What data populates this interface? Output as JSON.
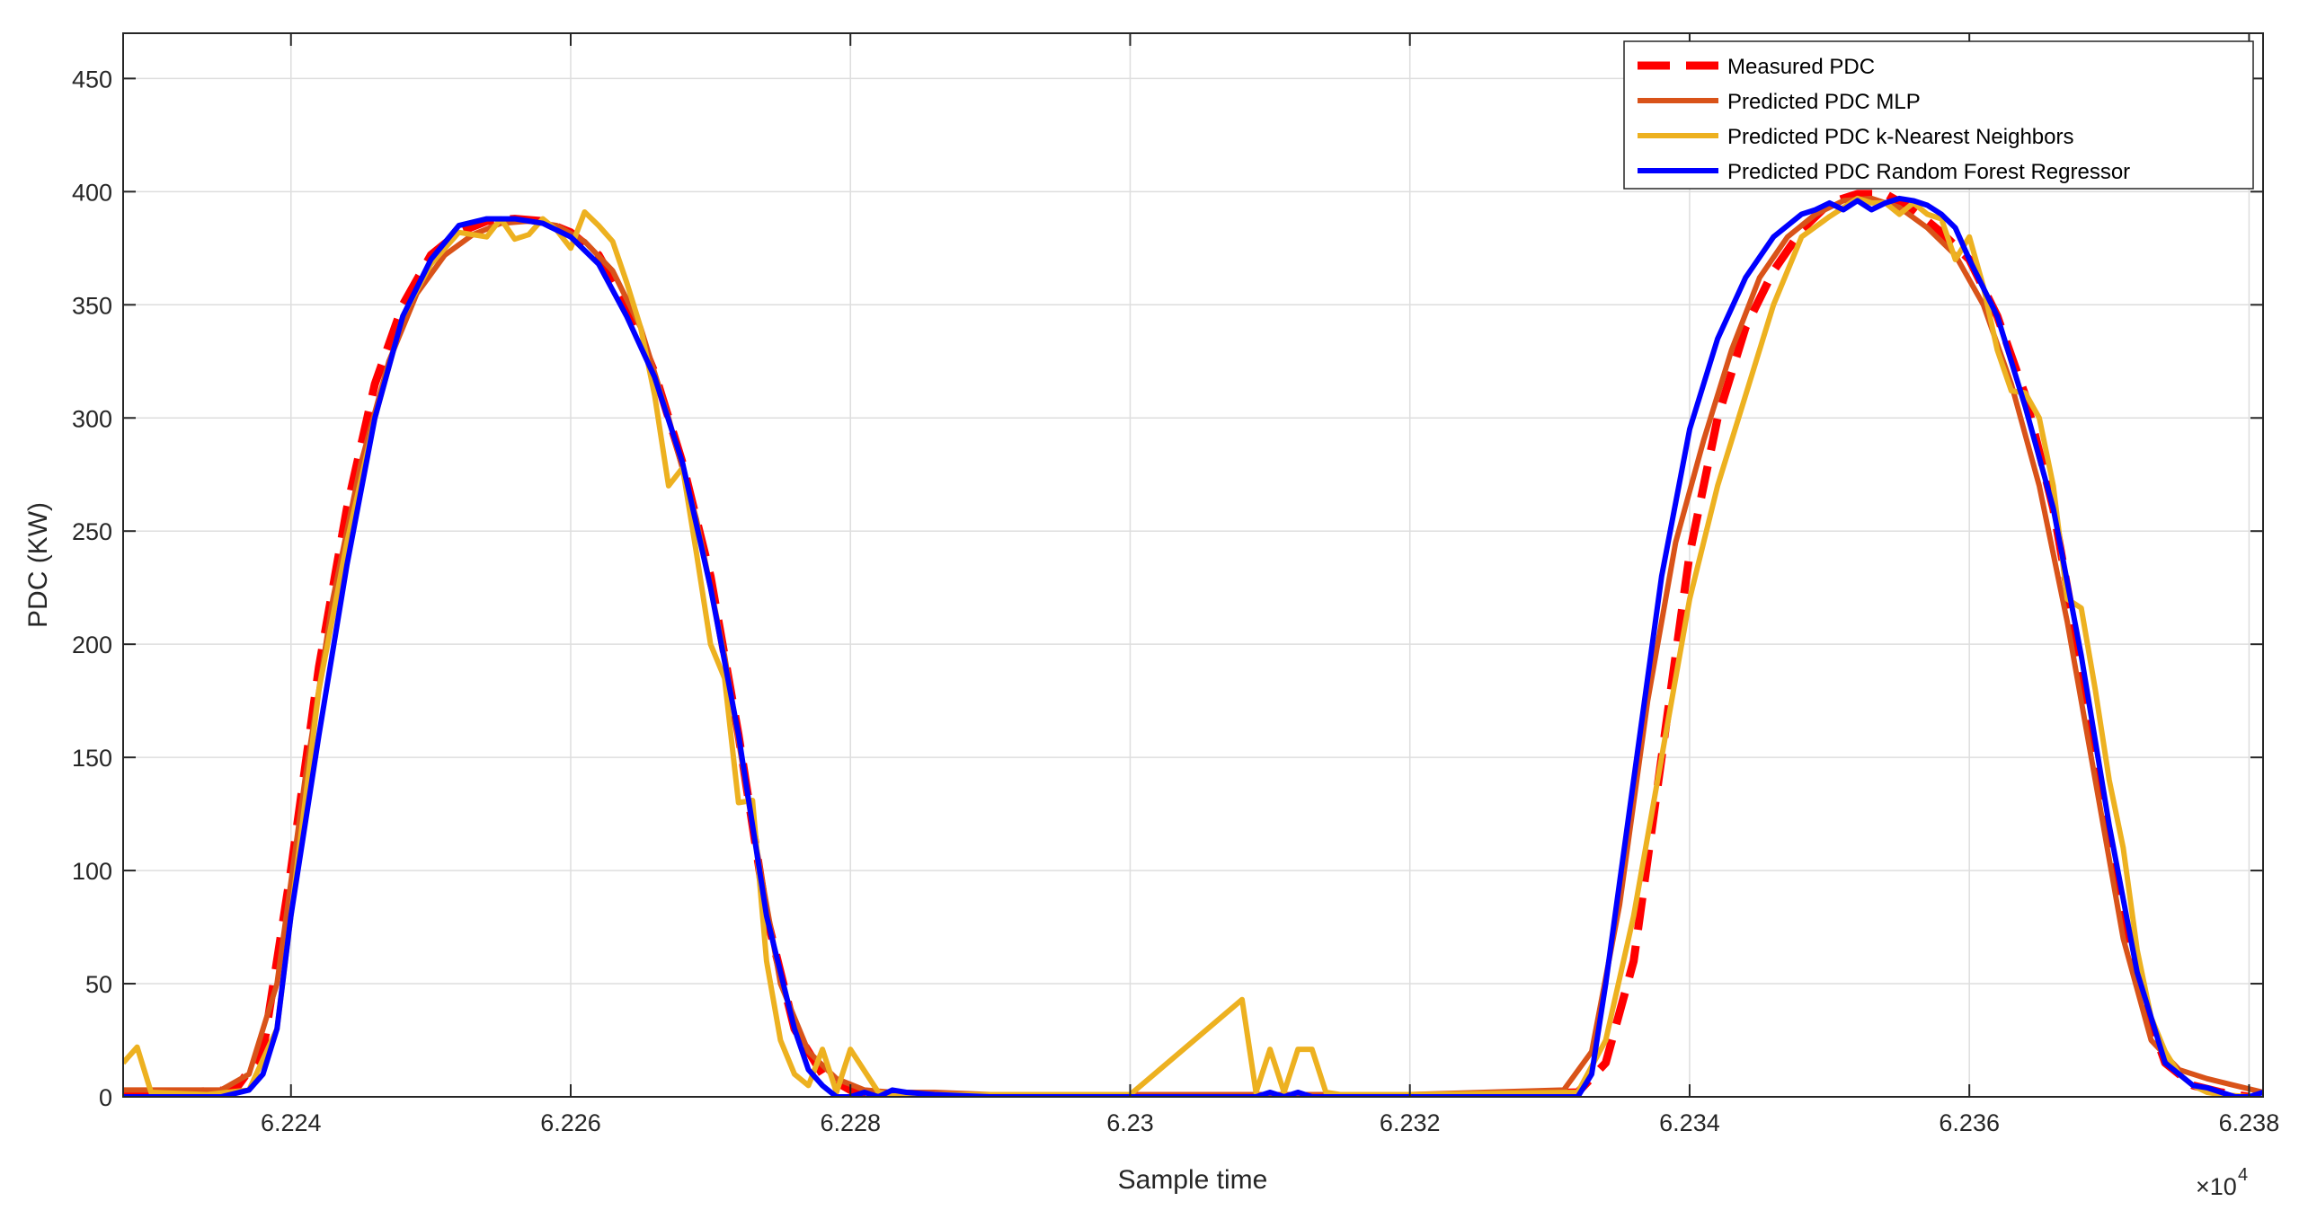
{
  "chart_data": {
    "type": "line",
    "xlabel": "Sample time",
    "ylabel": "PDC (KW)",
    "x_multiplier_label": "×10",
    "x_multiplier_exponent": "4",
    "xlim": [
      6.2228,
      6.2381
    ],
    "ylim": [
      0,
      470
    ],
    "x_ticks": [
      6.224,
      6.226,
      6.228,
      6.23,
      6.232,
      6.234,
      6.236,
      6.238
    ],
    "x_tick_labels": [
      "6.224",
      "6.226",
      "6.228",
      "6.23",
      "6.232",
      "6.234",
      "6.236",
      "6.238"
    ],
    "y_ticks": [
      0,
      50,
      100,
      150,
      200,
      250,
      300,
      350,
      400,
      450
    ],
    "y_tick_labels": [
      "0",
      "50",
      "100",
      "150",
      "200",
      "250",
      "300",
      "350",
      "400",
      "450"
    ],
    "grid": true,
    "legend_position": "top-right",
    "series": [
      {
        "name": "Measured PDC",
        "color": "#FF0000",
        "style": "dashed",
        "x": [
          6.2228,
          6.2232,
          6.2236,
          6.2238,
          6.224,
          6.2242,
          6.2244,
          6.2246,
          6.2248,
          6.225,
          6.2252,
          6.2254,
          6.2256,
          6.2258,
          6.226,
          6.2262,
          6.2264,
          6.2266,
          6.2268,
          6.227,
          6.2272,
          6.2274,
          6.2276,
          6.2278,
          6.228,
          6.2282,
          6.2284,
          6.229,
          6.23,
          6.231,
          6.232,
          6.2332,
          6.2334,
          6.2336,
          6.2338,
          6.234,
          6.2342,
          6.2344,
          6.2346,
          6.2348,
          6.235,
          6.2352,
          6.2354,
          6.2356,
          6.2358,
          6.236,
          6.2362,
          6.2364,
          6.2366,
          6.2368,
          6.237,
          6.2372,
          6.2374,
          6.2376,
          6.2378,
          6.238
        ],
        "y": [
          2,
          2,
          3,
          20,
          100,
          190,
          260,
          315,
          350,
          372,
          382,
          387,
          388,
          387,
          382,
          372,
          350,
          320,
          280,
          230,
          160,
          80,
          30,
          10,
          3,
          1,
          0,
          0,
          0,
          0,
          0,
          2,
          15,
          60,
          150,
          240,
          300,
          340,
          365,
          383,
          395,
          399,
          399,
          392,
          382,
          370,
          345,
          310,
          260,
          190,
          110,
          50,
          15,
          5,
          2,
          0
        ]
      },
      {
        "name": "Predicted PDC MLP",
        "color": "#D95319",
        "style": "solid",
        "x": [
          6.2228,
          6.2232,
          6.2235,
          6.2237,
          6.2239,
          6.2241,
          6.2243,
          6.2245,
          6.2247,
          6.2249,
          6.2251,
          6.2253,
          6.2255,
          6.2257,
          6.2259,
          6.2261,
          6.2263,
          6.2265,
          6.2267,
          6.2269,
          6.2271,
          6.2273,
          6.2275,
          6.2277,
          6.2279,
          6.2281,
          6.2283,
          6.2286,
          6.229,
          6.23,
          6.231,
          6.232,
          6.2331,
          6.2333,
          6.2335,
          6.2337,
          6.2339,
          6.2341,
          6.2343,
          6.2345,
          6.2347,
          6.2349,
          6.2351,
          6.2353,
          6.2355,
          6.2357,
          6.2359,
          6.2361,
          6.2363,
          6.2365,
          6.2367,
          6.2369,
          6.2371,
          6.2373,
          6.2375,
          6.2377,
          6.2379,
          6.2381
        ],
        "y": [
          3,
          3,
          3,
          10,
          50,
          140,
          220,
          280,
          325,
          355,
          372,
          381,
          386,
          387,
          385,
          378,
          365,
          340,
          300,
          255,
          195,
          120,
          50,
          20,
          8,
          3,
          2,
          2,
          1,
          1,
          1,
          1,
          3,
          20,
          85,
          175,
          245,
          290,
          330,
          362,
          380,
          390,
          396,
          397,
          393,
          384,
          372,
          350,
          315,
          270,
          210,
          140,
          70,
          25,
          12,
          8,
          5,
          2
        ]
      },
      {
        "name": "Predicted PDC k-Nearest Neighbors",
        "color": "#EDB120",
        "style": "solid",
        "x": [
          6.2228,
          6.2229,
          6.223,
          6.2234,
          6.2237,
          6.2239,
          6.224,
          6.2242,
          6.2244,
          6.2246,
          6.2248,
          6.225,
          6.2252,
          6.2254,
          6.2255,
          6.2256,
          6.2257,
          6.2258,
          6.2259,
          6.226,
          6.2261,
          6.2262,
          6.2263,
          6.2264,
          6.2265,
          6.2266,
          6.2267,
          6.2268,
          6.2269,
          6.227,
          6.2271,
          6.2272,
          6.2273,
          6.2274,
          6.2275,
          6.2276,
          6.2277,
          6.2278,
          6.2279,
          6.228,
          6.2282,
          6.2283,
          6.2284,
          6.2285,
          6.2286,
          6.2287,
          6.2288,
          6.229,
          6.23,
          6.2308,
          6.2309,
          6.231,
          6.2311,
          6.2312,
          6.2313,
          6.2314,
          6.2315,
          6.2316,
          6.232,
          6.2332,
          6.2334,
          6.2336,
          6.2338,
          6.234,
          6.2342,
          6.2344,
          6.2346,
          6.2348,
          6.235,
          6.2352,
          6.2353,
          6.2354,
          6.2355,
          6.2356,
          6.2357,
          6.2358,
          6.2359,
          6.236,
          6.2361,
          6.2362,
          6.2363,
          6.2364,
          6.2365,
          6.2366,
          6.2367,
          6.2368,
          6.2369,
          6.237,
          6.2371,
          6.2372,
          6.2373,
          6.2374,
          6.2375,
          6.2376,
          6.2377,
          6.2378,
          6.238
        ],
        "y": [
          15,
          22,
          2,
          1,
          3,
          30,
          80,
          180,
          245,
          300,
          345,
          368,
          382,
          380,
          388,
          379,
          381,
          388,
          383,
          375,
          391,
          385,
          378,
          360,
          340,
          310,
          270,
          278,
          240,
          200,
          185,
          130,
          131,
          60,
          25,
          10,
          5,
          21,
          2,
          21,
          2,
          1,
          1,
          1,
          1,
          1,
          1,
          1,
          1,
          43,
          2,
          21,
          2,
          21,
          21,
          2,
          1,
          1,
          1,
          2,
          25,
          80,
          150,
          220,
          270,
          310,
          350,
          380,
          389,
          397,
          395,
          395,
          390,
          395,
          390,
          388,
          370,
          380,
          358,
          330,
          312,
          311,
          300,
          270,
          220,
          216,
          180,
          140,
          110,
          65,
          35,
          20,
          10,
          5,
          2,
          1,
          0
        ]
      },
      {
        "name": "Predicted PDC Random Forest Regressor",
        "color": "#0000FF",
        "style": "solid",
        "x": [
          6.2228,
          6.2232,
          6.2235,
          6.2237,
          6.2238,
          6.2239,
          6.224,
          6.2242,
          6.2244,
          6.2246,
          6.2248,
          6.225,
          6.2252,
          6.2254,
          6.2256,
          6.2258,
          6.226,
          6.2262,
          6.2264,
          6.2266,
          6.2268,
          6.227,
          6.2272,
          6.2274,
          6.2276,
          6.2277,
          6.2278,
          6.2279,
          6.228,
          6.2281,
          6.2282,
          6.2283,
          6.2284,
          6.2286,
          6.229,
          6.23,
          6.2308,
          6.2309,
          6.231,
          6.2311,
          6.2312,
          6.2313,
          6.2314,
          6.232,
          6.2332,
          6.2333,
          6.2334,
          6.2336,
          6.2338,
          6.234,
          6.2342,
          6.2344,
          6.2346,
          6.2348,
          6.2349,
          6.235,
          6.2351,
          6.2352,
          6.2353,
          6.2354,
          6.2355,
          6.2356,
          6.2357,
          6.2358,
          6.2359,
          6.236,
          6.2362,
          6.2364,
          6.2366,
          6.2368,
          6.237,
          6.2372,
          6.2374,
          6.2376,
          6.2377,
          6.2378,
          6.2379,
          6.238,
          6.2381
        ],
        "y": [
          0,
          0,
          0,
          3,
          10,
          30,
          80,
          160,
          235,
          300,
          345,
          370,
          385,
          388,
          388,
          386,
          380,
          368,
          345,
          318,
          280,
          225,
          160,
          80,
          30,
          12,
          5,
          0,
          0,
          2,
          0,
          3,
          2,
          1,
          0,
          0,
          0,
          0,
          2,
          0,
          2,
          0,
          0,
          0,
          0,
          10,
          50,
          140,
          230,
          295,
          335,
          362,
          380,
          390,
          392,
          395,
          392,
          396,
          392,
          395,
          397,
          396,
          394,
          390,
          384,
          370,
          345,
          305,
          260,
          195,
          120,
          55,
          15,
          5,
          4,
          2,
          0,
          0,
          2
        ]
      }
    ]
  }
}
